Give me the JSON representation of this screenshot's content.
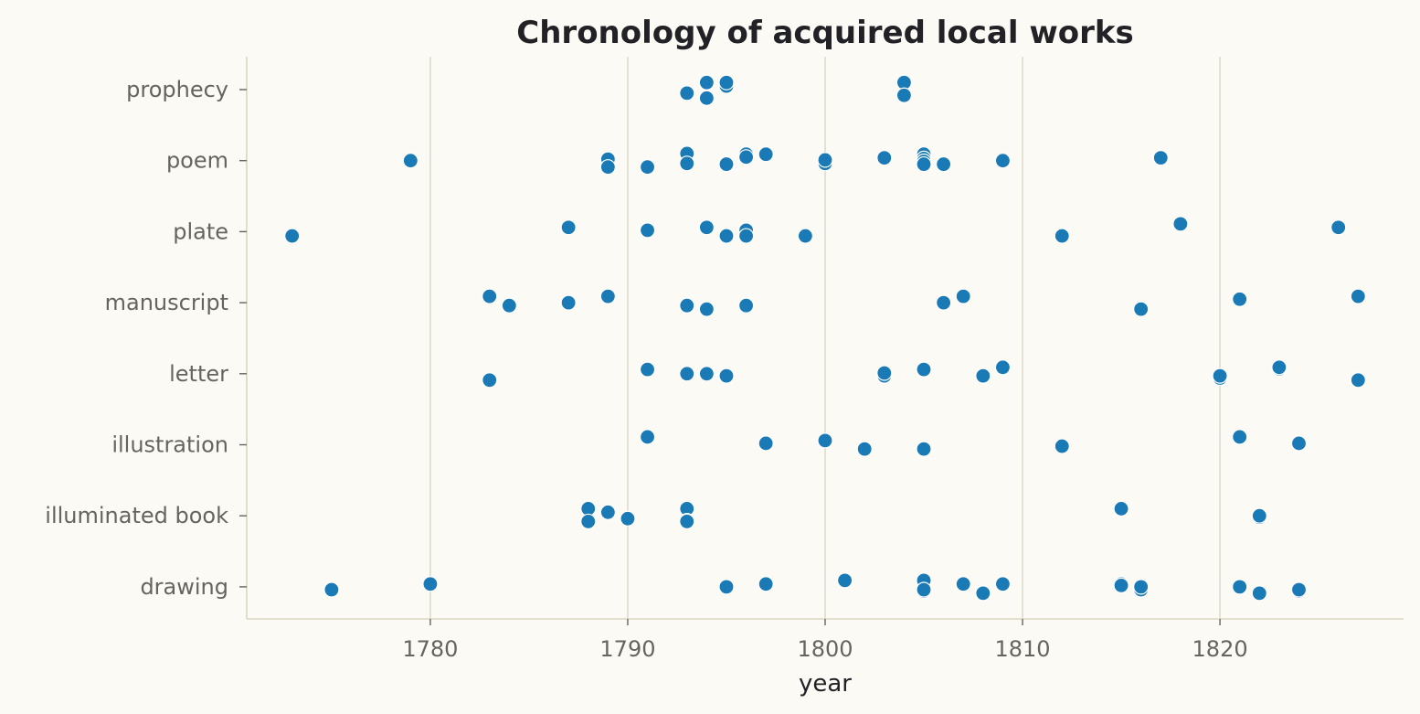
{
  "chart_data": {
    "type": "scatter",
    "title": "Chronology of acquired local works",
    "xlabel": "year",
    "ylabel": "",
    "xlim": [
      1770.7,
      1829.3
    ],
    "x_ticks": [
      1780,
      1790,
      1800,
      1810,
      1820
    ],
    "categories": [
      "drawing",
      "illuminated book",
      "illustration",
      "letter",
      "manuscript",
      "plate",
      "poem",
      "prophecy"
    ],
    "grid": "vertical",
    "legend": "none",
    "point_color": "#1a7ab5",
    "series": [
      {
        "category": "prophecy",
        "years": [
          1793,
          1794,
          1794,
          1795,
          1795,
          1804,
          1804
        ],
        "jitter": [
          0.05,
          -0.1,
          0.12,
          -0.05,
          -0.1,
          -0.1,
          0.08
        ]
      },
      {
        "category": "poem",
        "years": [
          1779,
          1789,
          1789,
          1791,
          1793,
          1793,
          1795,
          1796,
          1796,
          1797,
          1800,
          1800,
          1803,
          1805,
          1805,
          1805,
          1805,
          1806,
          1809,
          1817
        ],
        "jitter": [
          0,
          -0.02,
          0.09,
          0.09,
          -0.1,
          0.04,
          0.05,
          -0.09,
          -0.05,
          -0.09,
          0.04,
          -0.01,
          -0.04,
          -0.09,
          -0.03,
          0.01,
          0.05,
          0.05,
          0,
          -0.04
        ]
      },
      {
        "category": "plate",
        "years": [
          1773,
          1787,
          1791,
          1794,
          1795,
          1796,
          1796,
          1799,
          1812,
          1818,
          1826
        ],
        "jitter": [
          0.06,
          -0.06,
          -0.02,
          -0.06,
          0.06,
          -0.02,
          0.06,
          0.06,
          0.06,
          -0.11,
          -0.06
        ]
      },
      {
        "category": "manuscript",
        "years": [
          1783,
          1784,
          1787,
          1789,
          1793,
          1794,
          1796,
          1806,
          1807,
          1816,
          1821,
          1827
        ],
        "jitter": [
          -0.09,
          0.04,
          0,
          -0.09,
          0.04,
          0.09,
          0.04,
          0,
          -0.09,
          0.09,
          -0.05,
          -0.09
        ]
      },
      {
        "category": "letter",
        "years": [
          1783,
          1791,
          1793,
          1793,
          1794,
          1795,
          1803,
          1803,
          1805,
          1808,
          1809,
          1820,
          1820,
          1823,
          1823,
          1827
        ],
        "jitter": [
          0.09,
          -0.06,
          -0.01,
          0,
          0,
          0.03,
          0.03,
          -0.01,
          -0.06,
          0.03,
          -0.09,
          0.06,
          0.03,
          -0.07,
          -0.09,
          0.09
        ]
      },
      {
        "category": "illustration",
        "years": [
          1791,
          1797,
          1800,
          1802,
          1805,
          1812,
          1821,
          1824
        ],
        "jitter": [
          -0.11,
          -0.02,
          -0.06,
          0.06,
          0.06,
          0.02,
          -0.11,
          -0.02
        ]
      },
      {
        "category": "illuminated book",
        "years": [
          1788,
          1788,
          1789,
          1790,
          1793,
          1793,
          1793,
          1815,
          1822,
          1822
        ],
        "jitter": [
          -0.1,
          0.08,
          -0.05,
          0.04,
          -0.1,
          0.07,
          0.08,
          -0.1,
          0.02,
          0
        ]
      },
      {
        "category": "drawing",
        "years": [
          1775,
          1780,
          1795,
          1797,
          1801,
          1805,
          1805,
          1805,
          1807,
          1808,
          1809,
          1815,
          1815,
          1816,
          1816,
          1821,
          1822,
          1824,
          1824
        ],
        "jitter": [
          0.04,
          -0.04,
          0,
          -0.04,
          -0.09,
          -0.09,
          0.06,
          0.04,
          -0.04,
          0.09,
          -0.04,
          -0.04,
          -0.02,
          0.04,
          0,
          0,
          0.09,
          0.06,
          0.04
        ]
      }
    ]
  }
}
